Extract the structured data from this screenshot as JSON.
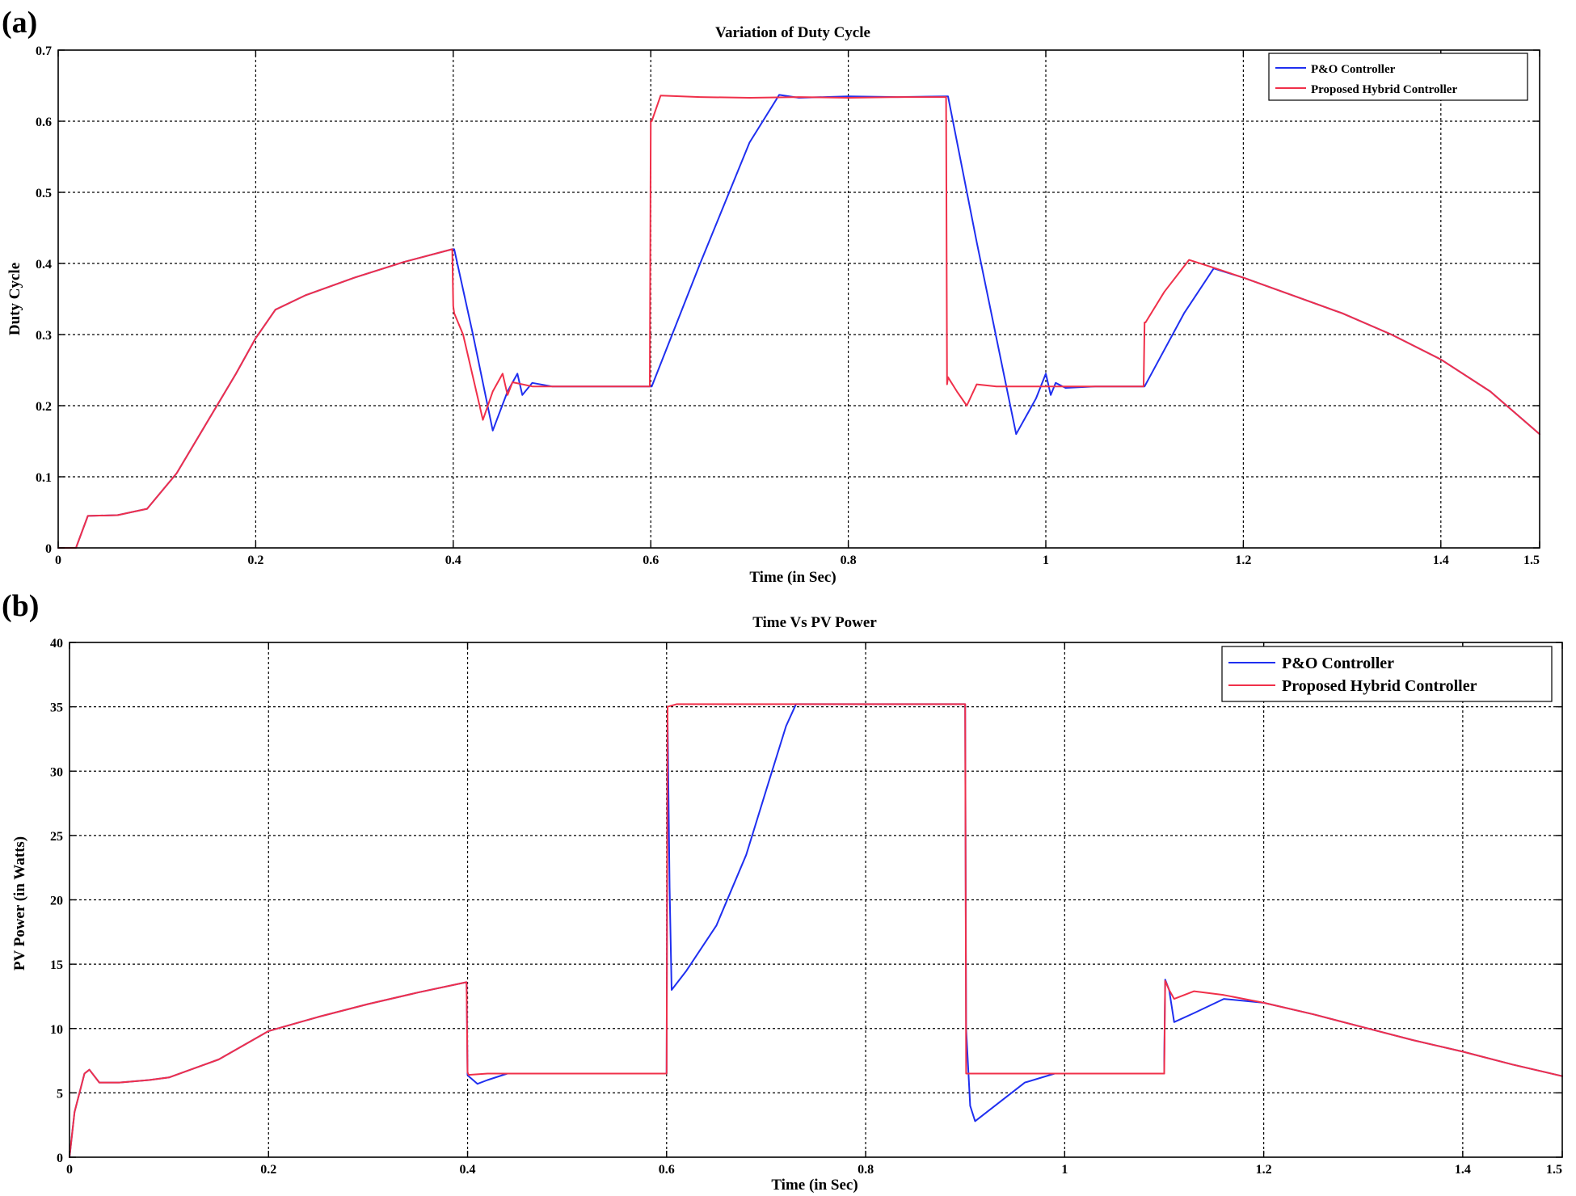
{
  "panels": [
    {
      "label": "(a)"
    },
    {
      "label": "(b)"
    }
  ],
  "colors": {
    "po": "#1f2ff0",
    "hybrid": "#f0304a"
  },
  "chart_data": [
    {
      "type": "line",
      "title": "Variation of Duty Cycle",
      "xlabel": "Time (in Sec)",
      "ylabel": "Duty Cycle",
      "xlim": [
        0,
        1.5
      ],
      "ylim": [
        0,
        0.7
      ],
      "xticks": [
        0,
        0.2,
        0.4,
        0.6,
        0.8,
        1,
        1.2,
        1.4,
        1.5
      ],
      "xtick_labels": [
        "0",
        "0.2",
        "0.4",
        "0.6",
        "0.8",
        "1",
        "1.2",
        "1.4",
        "1.5"
      ],
      "yticks": [
        0,
        0.1,
        0.2,
        0.3,
        0.4,
        0.5,
        0.6,
        0.7
      ],
      "ytick_labels": [
        "0",
        "0.1",
        "0.2",
        "0.3",
        "0.4",
        "0.5",
        "0.6",
        "0.7"
      ],
      "grid": true,
      "legend": "top-right",
      "series": [
        {
          "name": "P&O Controller",
          "color": "#1f2ff0",
          "x": [
            0,
            0.018,
            0.03,
            0.06,
            0.09,
            0.12,
            0.15,
            0.18,
            0.2,
            0.22,
            0.25,
            0.3,
            0.35,
            0.399,
            0.401,
            0.42,
            0.44,
            0.455,
            0.465,
            0.47,
            0.48,
            0.5,
            0.55,
            0.6,
            0.601,
            0.65,
            0.7,
            0.73,
            0.75,
            0.8,
            0.85,
            0.9,
            0.901,
            0.93,
            0.97,
            0.99,
            1.0,
            1.005,
            1.01,
            1.02,
            1.05,
            1.099,
            1.1,
            1.14,
            1.17,
            1.2,
            1.25,
            1.3,
            1.35,
            1.4,
            1.45,
            1.5
          ],
          "y": [
            0,
            0,
            0.045,
            0.046,
            0.055,
            0.105,
            0.175,
            0.245,
            0.295,
            0.335,
            0.355,
            0.38,
            0.402,
            0.42,
            0.42,
            0.3,
            0.165,
            0.22,
            0.245,
            0.215,
            0.232,
            0.227,
            0.227,
            0.227,
            0.227,
            0.4,
            0.57,
            0.637,
            0.633,
            0.635,
            0.634,
            0.635,
            0.635,
            0.43,
            0.16,
            0.21,
            0.245,
            0.215,
            0.232,
            0.225,
            0.227,
            0.227,
            0.227,
            0.33,
            0.393,
            0.38,
            0.355,
            0.33,
            0.3,
            0.265,
            0.22,
            0.16
          ]
        },
        {
          "name": "Proposed Hybrid Controller",
          "color": "#f0304a",
          "x": [
            0,
            0.018,
            0.03,
            0.06,
            0.09,
            0.12,
            0.15,
            0.18,
            0.2,
            0.22,
            0.25,
            0.3,
            0.35,
            0.399,
            0.4,
            0.401,
            0.41,
            0.43,
            0.44,
            0.45,
            0.455,
            0.46,
            0.48,
            0.5,
            0.55,
            0.599,
            0.6,
            0.601,
            0.61,
            0.65,
            0.7,
            0.75,
            0.8,
            0.85,
            0.899,
            0.9,
            0.901,
            0.91,
            0.92,
            0.93,
            0.95,
            1.0,
            1.05,
            1.099,
            1.1,
            1.101,
            1.12,
            1.145,
            1.17,
            1.2,
            1.25,
            1.3,
            1.35,
            1.4,
            1.45,
            1.5
          ],
          "y": [
            0,
            0,
            0.045,
            0.046,
            0.055,
            0.105,
            0.175,
            0.245,
            0.295,
            0.335,
            0.355,
            0.38,
            0.402,
            0.42,
            0.34,
            0.33,
            0.3,
            0.18,
            0.22,
            0.245,
            0.215,
            0.233,
            0.227,
            0.227,
            0.227,
            0.227,
            0.6,
            0.6,
            0.636,
            0.634,
            0.633,
            0.634,
            0.633,
            0.634,
            0.634,
            0.23,
            0.24,
            0.22,
            0.2,
            0.23,
            0.227,
            0.227,
            0.227,
            0.227,
            0.317,
            0.317,
            0.36,
            0.405,
            0.394,
            0.38,
            0.355,
            0.33,
            0.3,
            0.265,
            0.22,
            0.16
          ]
        }
      ]
    },
    {
      "type": "line",
      "title": "Time Vs PV Power",
      "xlabel": "Time (in Sec)",
      "ylabel": "PV Power (in Watts)",
      "xlim": [
        0,
        1.5
      ],
      "ylim": [
        0,
        40
      ],
      "xticks": [
        0,
        0.2,
        0.4,
        0.6,
        0.8,
        1,
        1.2,
        1.4,
        1.5
      ],
      "xtick_labels": [
        "0",
        "0.2",
        "0.4",
        "0.6",
        "0.8",
        "1",
        "1.2",
        "1.4",
        "1.5"
      ],
      "yticks": [
        0,
        5,
        10,
        15,
        20,
        25,
        30,
        35,
        40
      ],
      "ytick_labels": [
        "0",
        "5",
        "10",
        "15",
        "20",
        "25",
        "30",
        "35",
        "40"
      ],
      "grid": true,
      "legend": "top-right",
      "series": [
        {
          "name": "P&O Controller",
          "color": "#1f2ff0",
          "x": [
            0,
            0.005,
            0.015,
            0.02,
            0.03,
            0.05,
            0.08,
            0.1,
            0.15,
            0.2,
            0.25,
            0.3,
            0.35,
            0.399,
            0.4,
            0.401,
            0.41,
            0.42,
            0.44,
            0.6,
            0.601,
            0.603,
            0.605,
            0.62,
            0.65,
            0.68,
            0.7,
            0.72,
            0.73,
            0.9,
            0.901,
            0.905,
            0.91,
            0.93,
            0.96,
            0.99,
            1.1,
            1.1,
            1.101,
            1.105,
            1.11,
            1.13,
            1.16,
            1.2,
            1.25,
            1.3,
            1.35,
            1.4,
            1.45,
            1.5
          ],
          "y": [
            0,
            3.5,
            6.5,
            6.8,
            5.8,
            5.8,
            6.0,
            6.2,
            7.6,
            9.8,
            10.9,
            11.9,
            12.8,
            13.6,
            6.4,
            6.3,
            5.7,
            6.0,
            6.5,
            6.5,
            34.0,
            21.0,
            13.0,
            14.5,
            18.0,
            23.5,
            28.5,
            33.5,
            35.2,
            35.2,
            10.0,
            4.0,
            2.8,
            4.0,
            5.8,
            6.5,
            6.5,
            7.5,
            13.8,
            13.0,
            10.5,
            11.2,
            12.3,
            12.0,
            11.1,
            10.1,
            9.1,
            8.2,
            7.2,
            6.3
          ]
        },
        {
          "name": "Proposed Hybrid Controller",
          "color": "#f0304a",
          "x": [
            0,
            0.005,
            0.015,
            0.02,
            0.03,
            0.05,
            0.08,
            0.1,
            0.15,
            0.2,
            0.25,
            0.3,
            0.35,
            0.399,
            0.4,
            0.401,
            0.42,
            0.44,
            0.6,
            0.601,
            0.61,
            0.9,
            0.901,
            0.91,
            1.1,
            1.101,
            1.105,
            1.11,
            1.13,
            1.16,
            1.2,
            1.25,
            1.3,
            1.35,
            1.4,
            1.45,
            1.5
          ],
          "y": [
            0,
            3.5,
            6.5,
            6.8,
            5.8,
            5.8,
            6.0,
            6.2,
            7.6,
            9.8,
            10.9,
            11.9,
            12.8,
            13.6,
            6.6,
            6.4,
            6.5,
            6.5,
            6.5,
            35.0,
            35.2,
            35.2,
            6.5,
            6.5,
            6.5,
            13.7,
            13.0,
            12.3,
            12.9,
            12.6,
            12.0,
            11.1,
            10.1,
            9.1,
            8.2,
            7.2,
            6.3
          ]
        }
      ]
    }
  ]
}
